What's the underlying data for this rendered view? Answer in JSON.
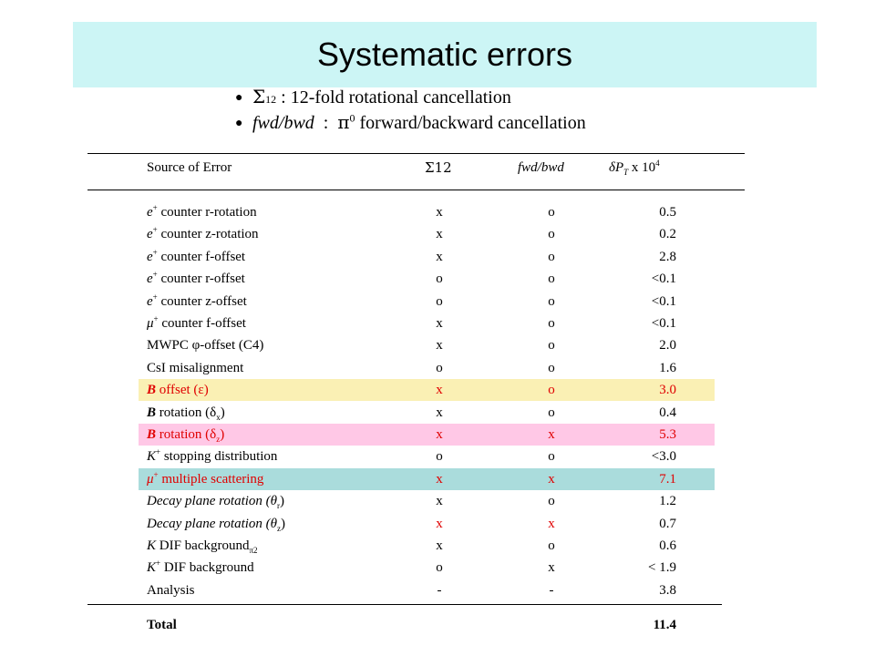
{
  "title": "Systematic errors",
  "bullets": [
    {
      "symbol": "Σ",
      "sub": "12",
      "text": " : 12-fold rotational  cancellation"
    },
    {
      "italic": "fwd/bwd",
      "sep": "  :  ",
      "symbol": "π",
      "sup": "0",
      "text": " forward/backward cancellation"
    }
  ],
  "table": {
    "headers": {
      "source": "Source of Error",
      "sigma": "Σ12",
      "fwdbwd": "fwd/bwd",
      "dpt_prefix": "δP",
      "dpt_sub": "T",
      "dpt_suffix": " x 10",
      "dpt_sup": "4"
    },
    "rows": [
      {
        "pre": "e",
        "sup": "+",
        "post": " counter r-rotation",
        "a": "x",
        "b": "o",
        "v": "0.5"
      },
      {
        "pre": "e",
        "sup": "+",
        "post": " counter z-rotation",
        "a": "x",
        "b": "o",
        "v": "0.2"
      },
      {
        "pre": "e",
        "sup": "+",
        "post": " counter f-offset",
        "a": "x",
        "b": "o",
        "v": "2.8"
      },
      {
        "pre": "e",
        "sup": "+",
        "post": " counter r-offset",
        "a": "o",
        "b": "o",
        "v": "<0.1"
      },
      {
        "pre": "e",
        "sup": "+",
        "post": " counter z-offset",
        "a": "o",
        "b": "o",
        "v": "<0.1"
      },
      {
        "pre": "μ",
        "sup": "+",
        "post": " counter f-offset",
        "a": "x",
        "b": "o",
        "v": "<0.1"
      },
      {
        "pre": "MWPC φ-offset (C4)",
        "a": "x",
        "b": "o",
        "v": "2.0"
      },
      {
        "pre": "CsI misalignment",
        "a": "o",
        "b": "o",
        "v": "1.6"
      },
      {
        "boldpre": "B",
        "post": " offset (ε)",
        "a": "x",
        "b": "o",
        "v": "3.0",
        "highlight": "#faf0b4",
        "red": true
      },
      {
        "boldpre": "B",
        "post": " rotation (δ",
        "sub": "x",
        "post2": ")",
        "a": "x",
        "b": "o",
        "v": "0.4"
      },
      {
        "boldpre": "B",
        "post": " rotation (δ",
        "sub": "z",
        "post2": ")",
        "a": "x",
        "b": "x",
        "v": "5.3",
        "highlight": "#ffc8e6",
        "red": true
      },
      {
        "pre": "K",
        "sup": "+",
        "post": " stopping distribution",
        "a": "o",
        "b": "o",
        "v": "<3.0"
      },
      {
        "pre": "μ",
        "sup": "+",
        "post": " multiple scattering",
        "a": "x",
        "b": "x",
        "v": "7.1",
        "highlight": "#aadcdc",
        "red": true
      },
      {
        "pre": "Decay plane rotation (θ",
        "sub": "r",
        "post2": ")",
        "a": "x",
        "b": "o",
        "v": "1.2"
      },
      {
        "pre": "Decay plane rotation (θ",
        "sub": "z",
        "post2": ")",
        "a": "x",
        "b": "x",
        "v": "0.7",
        "redab": true
      },
      {
        "pre": "K",
        "sub": "π2",
        "post": " DIF background",
        "a": "x",
        "b": "o",
        "v": "0.6"
      },
      {
        "pre": "K",
        "sup": "+",
        "post": " DIF background",
        "a": "o",
        "b": "x",
        "v": "< 1.9"
      },
      {
        "pre": "Analysis",
        "a": "-",
        "b": "-",
        "v": "3.8"
      }
    ],
    "total": {
      "label": "Total",
      "v": "11.4"
    }
  },
  "colors": {
    "title_band": "#ccf5f5",
    "highlight_yellow": "#faf0b4",
    "highlight_pink": "#ffc8e6",
    "highlight_teal": "#aadcdc",
    "red_text": "#e00000"
  }
}
